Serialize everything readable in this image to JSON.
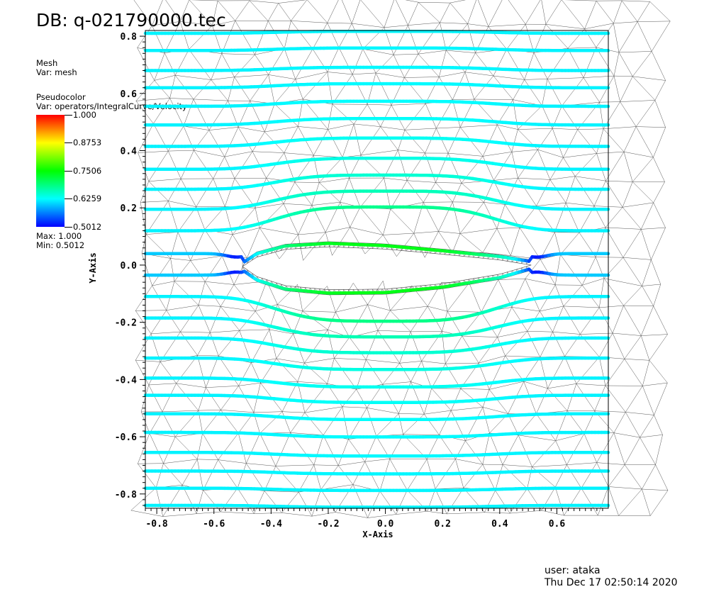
{
  "header": {
    "title": "DB: q-021790000.tec"
  },
  "legend": {
    "mesh": {
      "plot_type": "Mesh",
      "var": "Var: mesh"
    },
    "pseudocolor": {
      "plot_type": "Pseudocolor",
      "var": "Var: operators/IntegralCurve/Velocity",
      "labels": [
        "1.000",
        "0.8753",
        "0.7506",
        "0.6259",
        "0.5012"
      ],
      "max": "Max:  1.000",
      "min": "Min:  0.5012"
    }
  },
  "footer": {
    "user": "user: ataka",
    "timestamp": "Thu Dec 17 02:50:14 2020"
  },
  "colors": {
    "colormap": [
      "#0000ff",
      "#00ffff",
      "#00ff00",
      "#ffff00",
      "#ff0000"
    ],
    "mesh": "#555555"
  },
  "chart_data": {
    "type": "line",
    "title": "DB: q-021790000.tec",
    "xlabel": "X-Axis",
    "ylabel": "Y-Axis",
    "xlim": [
      -0.84,
      0.78
    ],
    "ylim": [
      -0.85,
      0.82
    ],
    "x_ticks": [
      "-0.8",
      "-0.6",
      "-0.4",
      "-0.2",
      "0.0",
      "0.2",
      "0.4",
      "0.6"
    ],
    "y_ticks": [
      "0.8",
      "0.6",
      "0.4",
      "0.2",
      "0.0",
      "-0.2",
      "-0.4",
      "-0.6",
      "-0.8"
    ],
    "color_range": [
      0.5012,
      1.0
    ],
    "body": {
      "name": "airfoil",
      "leading_edge_x": -0.5,
      "trailing_edge_x": 0.51,
      "upper_y": [
        [
          -0.5,
          -0.005
        ],
        [
          -0.45,
          0.028
        ],
        [
          -0.35,
          0.055
        ],
        [
          -0.2,
          0.064
        ],
        [
          0.0,
          0.056
        ],
        [
          0.2,
          0.038
        ],
        [
          0.4,
          0.018
        ],
        [
          0.51,
          0.0
        ]
      ],
      "lower_y": [
        [
          -0.5,
          -0.005
        ],
        [
          -0.45,
          -0.04
        ],
        [
          -0.35,
          -0.072
        ],
        [
          -0.2,
          -0.086
        ],
        [
          0.0,
          -0.084
        ],
        [
          0.2,
          -0.065
        ],
        [
          0.4,
          -0.032
        ],
        [
          0.51,
          0.0
        ]
      ]
    },
    "streamlines": {
      "count": 25,
      "x_range": [
        -0.84,
        0.78
      ],
      "y0": [
        0.81,
        0.75,
        0.68,
        0.62,
        0.555,
        0.49,
        0.415,
        0.335,
        0.265,
        0.195,
        0.12,
        0.04,
        -0.035,
        -0.11,
        -0.185,
        -0.255,
        -0.325,
        -0.395,
        -0.455,
        -0.52,
        -0.585,
        -0.655,
        -0.72,
        -0.78,
        -0.84
      ],
      "velocity_range": [
        0.5012,
        1.0
      ]
    }
  }
}
